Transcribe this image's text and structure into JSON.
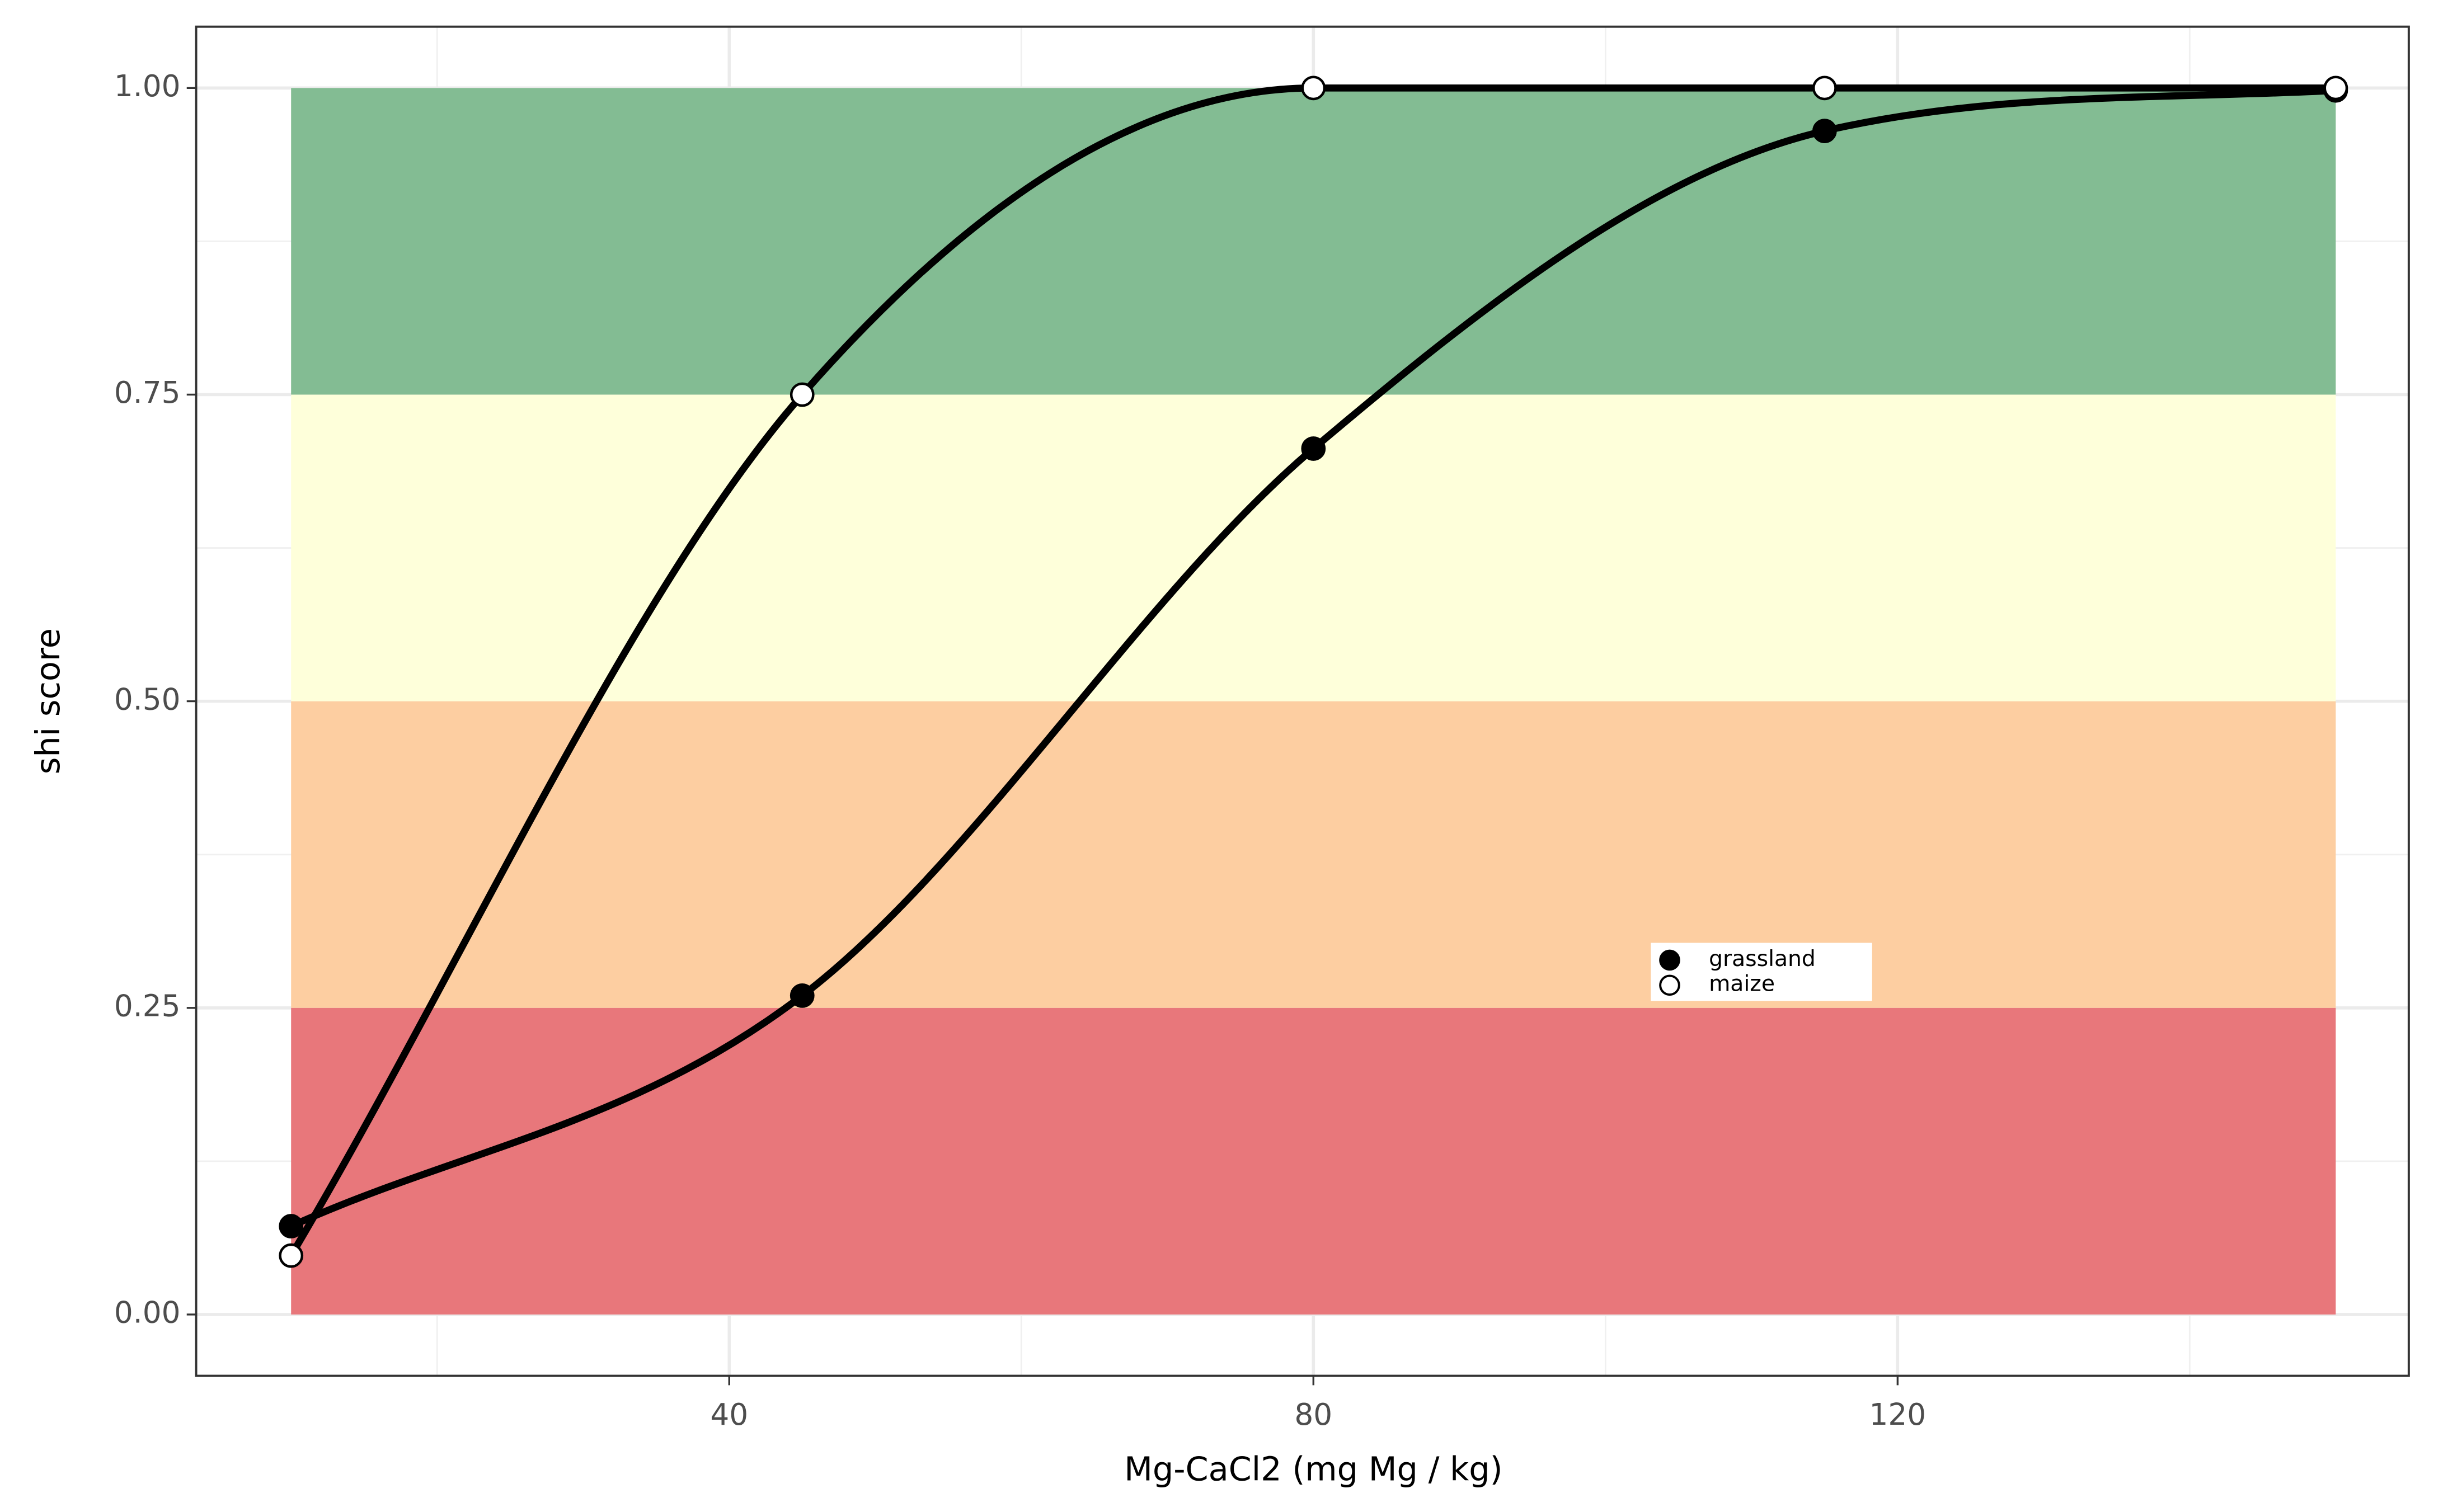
{
  "chart_data": {
    "type": "line",
    "xlabel": "Mg-CaCl2 (mg Mg / kg)",
    "ylabel": "shi score",
    "x": [
      10,
      45,
      80,
      115,
      150
    ],
    "series": [
      {
        "name": "grassland",
        "color": "#000000",
        "marker_fill": "#000000",
        "values": [
          0.072,
          0.26,
          0.706,
          0.965,
          0.998
        ]
      },
      {
        "name": "maize",
        "color": "#000000",
        "marker_fill": "#ffffff",
        "values": [
          0.048,
          0.75,
          1.0,
          1.0,
          1.0
        ]
      }
    ],
    "bands": [
      {
        "ymin": 0,
        "ymax": 0.25,
        "color": "#e77377"
      },
      {
        "ymin": 0.25,
        "ymax": 0.5,
        "color": "#fdcc9e"
      },
      {
        "ymin": 0.5,
        "ymax": 0.75,
        "color": "#feffd9"
      },
      {
        "ymin": 0.75,
        "ymax": 1,
        "color": "#7fba8f"
      }
    ],
    "band_xlim": [
      10,
      150
    ],
    "xlim": [
      3.5,
      155
    ],
    "ylim": [
      -0.05,
      1.05
    ],
    "xticks": [
      40,
      80,
      120
    ],
    "xminor": [
      20,
      60,
      100,
      140
    ],
    "yticks": [
      {
        "value": 0,
        "label": "0.00"
      },
      {
        "value": 0.25,
        "label": "0.25"
      },
      {
        "value": 0.5,
        "label": "0.50"
      },
      {
        "value": 0.75,
        "label": "0.75"
      },
      {
        "value": 1,
        "label": "1.00"
      }
    ],
    "yminor": [
      0.125,
      0.375,
      0.625,
      0.875
    ],
    "grid": true
  }
}
